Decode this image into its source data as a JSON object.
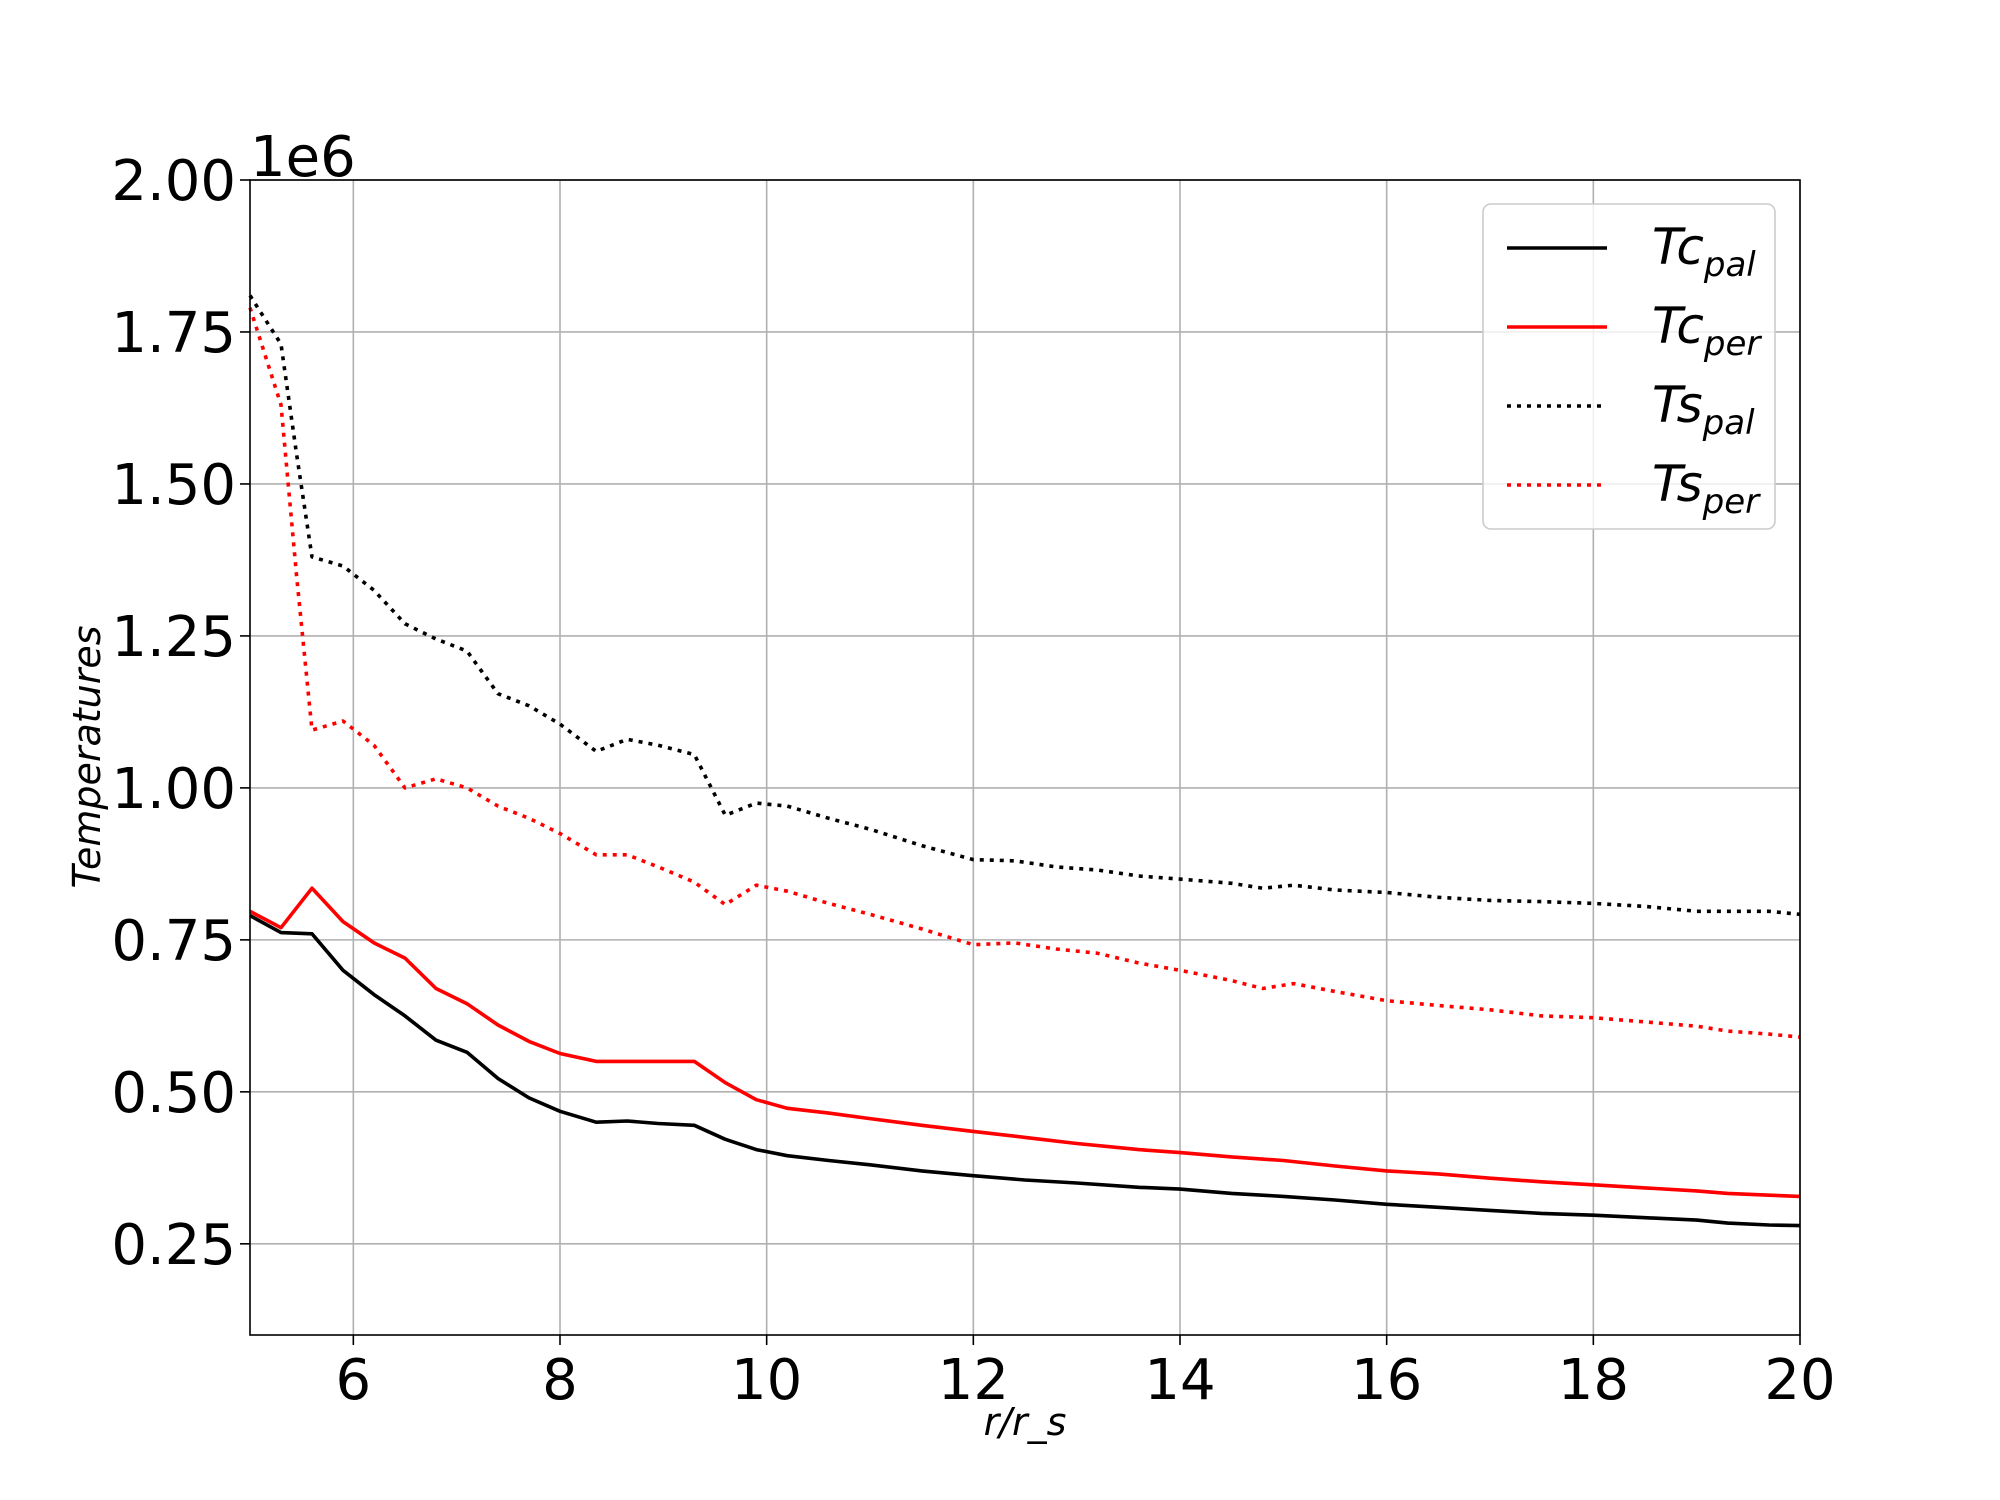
{
  "chart_data": {
    "type": "line",
    "xlabel": "r/r_s",
    "ylabel": "Temperatures",
    "offset_text": "1e6",
    "xlim": [
      5,
      20
    ],
    "ylim": [
      100000,
      2000000
    ],
    "xticks": [
      6,
      8,
      10,
      12,
      14,
      16,
      18,
      20
    ],
    "xtick_labels": [
      "6",
      "8",
      "10",
      "12",
      "14",
      "16",
      "18",
      "20"
    ],
    "yticks": [
      250000,
      500000,
      750000,
      1000000,
      1250000,
      1500000,
      1750000,
      2000000
    ],
    "ytick_labels": [
      "0.25",
      "0.50",
      "0.75",
      "1.00",
      "1.25",
      "1.50",
      "1.75",
      "2.00"
    ],
    "grid": true,
    "legend_position": "top-right",
    "series": [
      {
        "name": "Tc_pal",
        "label_main": "Tc",
        "label_sub": "pal",
        "color": "#000000",
        "style": "solid",
        "x": [
          5.0,
          5.3,
          5.6,
          5.9,
          6.2,
          6.5,
          6.8,
          7.1,
          7.4,
          7.7,
          8.0,
          8.35,
          8.65,
          8.95,
          9.3,
          9.6,
          9.9,
          10.2,
          10.6,
          11.0,
          11.5,
          12.0,
          12.5,
          13.0,
          13.6,
          14.0,
          14.5,
          15.0,
          15.5,
          16.0,
          16.5,
          17.0,
          17.5,
          18.0,
          18.5,
          19.0,
          19.3,
          19.7,
          20.0
        ],
        "y": [
          790000,
          762000,
          760000,
          700000,
          660000,
          625000,
          585000,
          565000,
          522000,
          490000,
          468000,
          450000,
          452000,
          448000,
          445000,
          422000,
          405000,
          395000,
          387000,
          380000,
          370000,
          362000,
          355000,
          350000,
          343000,
          340000,
          333000,
          328000,
          322000,
          315000,
          310000,
          305000,
          300000,
          297000,
          293000,
          289000,
          284000,
          281000,
          280000
        ]
      },
      {
        "name": "Tc_per",
        "label_main": "Tc",
        "label_sub": "per",
        "color": "#ff0000",
        "style": "solid",
        "x": [
          5.0,
          5.3,
          5.6,
          5.9,
          6.2,
          6.5,
          6.8,
          7.1,
          7.4,
          7.7,
          8.0,
          8.35,
          8.65,
          8.95,
          9.3,
          9.6,
          9.9,
          10.2,
          10.6,
          11.0,
          11.5,
          12.0,
          12.5,
          13.0,
          13.6,
          14.0,
          14.5,
          15.0,
          15.5,
          16.0,
          16.5,
          17.0,
          17.5,
          18.0,
          18.5,
          19.0,
          19.3,
          19.7,
          20.0
        ],
        "y": [
          797000,
          770000,
          835000,
          780000,
          745000,
          720000,
          670000,
          645000,
          610000,
          583000,
          563000,
          550000,
          550000,
          550000,
          550000,
          515000,
          487000,
          473000,
          465000,
          456000,
          445000,
          435000,
          425000,
          415000,
          405000,
          400000,
          393000,
          387000,
          378000,
          370000,
          365000,
          358000,
          352000,
          347000,
          342000,
          337000,
          333000,
          330000,
          328000
        ]
      },
      {
        "name": "Ts_pal",
        "label_main": "Ts",
        "label_sub": "pal",
        "color": "#000000",
        "style": "dotted",
        "x": [
          5.0,
          5.3,
          5.45,
          5.6,
          5.9,
          6.2,
          6.5,
          6.8,
          7.1,
          7.4,
          7.7,
          8.0,
          8.35,
          8.65,
          8.95,
          9.3,
          9.6,
          9.9,
          10.2,
          10.6,
          11.0,
          11.5,
          12.0,
          12.4,
          12.8,
          13.2,
          13.6,
          14.0,
          14.5,
          14.8,
          15.1,
          15.5,
          16.0,
          16.5,
          17.0,
          17.5,
          18.0,
          18.5,
          19.0,
          19.3,
          19.7,
          20.0
        ],
        "y": [
          1810000,
          1730000,
          1550000,
          1380000,
          1365000,
          1325000,
          1270000,
          1245000,
          1225000,
          1155000,
          1135000,
          1105000,
          1060000,
          1080000,
          1070000,
          1055000,
          955000,
          975000,
          970000,
          950000,
          932000,
          905000,
          882000,
          880000,
          870000,
          865000,
          855000,
          850000,
          843000,
          835000,
          840000,
          832000,
          828000,
          820000,
          815000,
          813000,
          810000,
          805000,
          797000,
          797000,
          797000,
          792000
        ]
      },
      {
        "name": "Ts_per",
        "label_main": "Ts",
        "label_sub": "per",
        "color": "#ff0000",
        "style": "dotted",
        "x": [
          5.0,
          5.3,
          5.45,
          5.6,
          5.9,
          6.2,
          6.5,
          6.8,
          7.1,
          7.4,
          7.7,
          8.0,
          8.35,
          8.65,
          8.95,
          9.3,
          9.6,
          9.9,
          10.2,
          10.6,
          11.0,
          11.5,
          12.0,
          12.4,
          12.8,
          13.2,
          13.6,
          14.0,
          14.5,
          14.8,
          15.1,
          15.5,
          16.0,
          16.5,
          17.0,
          17.5,
          18.0,
          18.5,
          19.0,
          19.3,
          19.7,
          20.0
        ],
        "y": [
          1790000,
          1630000,
          1350000,
          1095000,
          1110000,
          1070000,
          1000000,
          1015000,
          1000000,
          970000,
          950000,
          925000,
          890000,
          890000,
          870000,
          845000,
          808000,
          840000,
          830000,
          810000,
          792000,
          768000,
          742000,
          745000,
          735000,
          728000,
          712000,
          700000,
          683000,
          670000,
          678000,
          665000,
          650000,
          642000,
          635000,
          625000,
          622000,
          615000,
          608000,
          600000,
          595000,
          590000
        ]
      }
    ]
  }
}
